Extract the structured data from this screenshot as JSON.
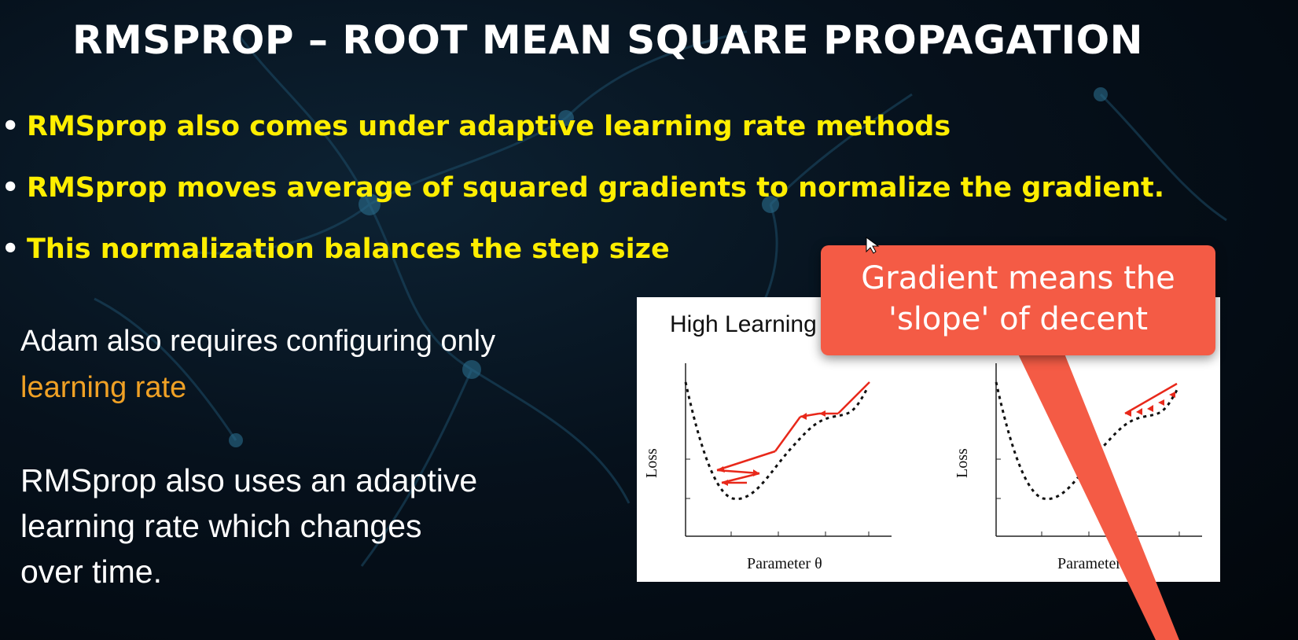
{
  "slide": {
    "title": "RMSPROP – ROOT MEAN SQUARE PROPAGATION",
    "bullets": [
      "RMSprop also comes under adaptive learning rate methods",
      "RMSprop moves average of squared gradients to normalize the gradient.",
      "This normalization balances the step size"
    ],
    "bullet_glyph": "•",
    "adam_note": {
      "line1": "Adam also requires configuring only",
      "line2": "learning rate"
    },
    "rmsprop_note": {
      "line1": "RMSprop also uses an adaptive",
      "line2": "learning rate which changes",
      "line3": "over time."
    },
    "colors": {
      "bullet_text": "#ffee00",
      "highlight": "#f0a125",
      "callout": "#f45b45",
      "arrows": "#e8281a"
    }
  },
  "figure": {
    "left_title": "High Learning",
    "y_axis_label": "Loss",
    "x_axis_label": "Parameter θ",
    "x_axis_label_partial": "Parameter "
  },
  "callout": {
    "line1": "Gradient means the",
    "line2": "'slope' of decent"
  }
}
